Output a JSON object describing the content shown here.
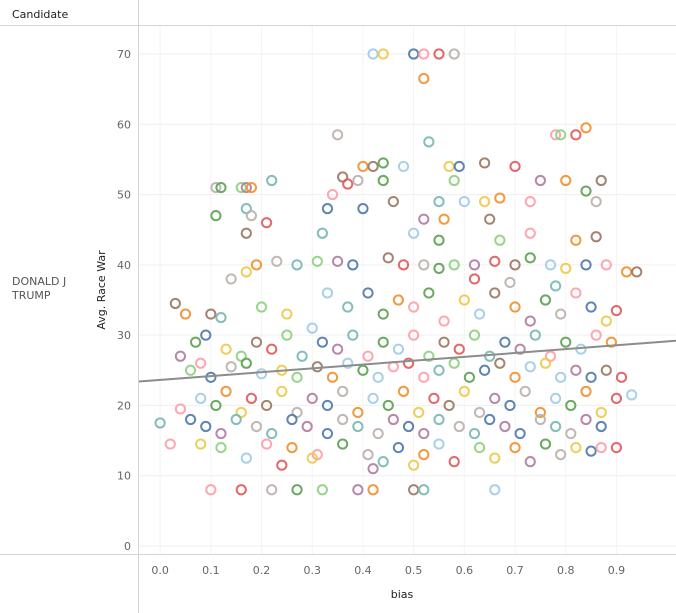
{
  "header": {
    "column_title": "Candidate"
  },
  "row": {
    "label_line1": "DONALD J",
    "label_line2": "TRUMP"
  },
  "chart_data": {
    "type": "scatter",
    "xlabel": "bias",
    "ylabel": "Avg. Race War",
    "x_ticks": [
      0.0,
      0.1,
      0.2,
      0.3,
      0.4,
      0.5,
      0.6,
      0.7,
      0.8,
      0.9
    ],
    "x_tick_labels": [
      "0.0",
      "0.1",
      "0.2",
      "0.3",
      "0.4",
      "0.5",
      "0.6",
      "0.7",
      "0.8",
      "0.9"
    ],
    "y_ticks": [
      0,
      10,
      20,
      30,
      40,
      50,
      60,
      70
    ],
    "y_tick_labels": [
      "0",
      "10",
      "20",
      "30",
      "40",
      "50",
      "60",
      "70"
    ],
    "xlim": [
      -0.02,
      0.98
    ],
    "ylim": [
      -1,
      73
    ],
    "grid": true,
    "marker": "hollow-circle",
    "trend_line": {
      "type": "linear",
      "x": [
        -0.02,
        0.98
      ],
      "y": [
        23.4,
        29.2
      ]
    },
    "palette": [
      "#4e79a7",
      "#f28e2b",
      "#e15759",
      "#76b7b2",
      "#59a14f",
      "#edc948",
      "#b07aa1",
      "#ff9da7",
      "#9c755f",
      "#bab0ac",
      "#a0cbe8",
      "#8cd17d"
    ],
    "trend_color": "#8c8c8c",
    "points": [
      [
        0.42,
        70
      ],
      [
        0.44,
        70
      ],
      [
        0.5,
        70
      ],
      [
        0.52,
        70
      ],
      [
        0.55,
        70
      ],
      [
        0.58,
        70
      ],
      [
        0.52,
        66.5
      ],
      [
        0.84,
        59.5
      ],
      [
        0.78,
        58.5
      ],
      [
        0.82,
        58.5
      ],
      [
        0.35,
        58.5
      ],
      [
        0.53,
        57.5
      ],
      [
        0.79,
        58.5
      ],
      [
        0.4,
        54
      ],
      [
        0.42,
        54
      ],
      [
        0.44,
        54.5
      ],
      [
        0.48,
        54
      ],
      [
        0.57,
        54
      ],
      [
        0.59,
        54
      ],
      [
        0.64,
        54.5
      ],
      [
        0.7,
        54
      ],
      [
        0.36,
        52.5
      ],
      [
        0.37,
        51.5
      ],
      [
        0.39,
        52
      ],
      [
        0.44,
        52
      ],
      [
        0.58,
        52
      ],
      [
        0.75,
        52
      ],
      [
        0.8,
        52
      ],
      [
        0.87,
        52
      ],
      [
        0.22,
        52
      ],
      [
        0.11,
        51
      ],
      [
        0.12,
        51
      ],
      [
        0.16,
        51
      ],
      [
        0.17,
        51
      ],
      [
        0.18,
        51
      ],
      [
        0.34,
        50
      ],
      [
        0.4,
        48
      ],
      [
        0.46,
        49
      ],
      [
        0.55,
        49
      ],
      [
        0.6,
        49
      ],
      [
        0.64,
        49
      ],
      [
        0.67,
        49.5
      ],
      [
        0.73,
        49
      ],
      [
        0.84,
        50.5
      ],
      [
        0.86,
        49
      ],
      [
        0.17,
        48
      ],
      [
        0.18,
        47
      ],
      [
        0.11,
        47
      ],
      [
        0.33,
        48
      ],
      [
        0.52,
        46.5
      ],
      [
        0.56,
        46.5
      ],
      [
        0.65,
        46.5
      ],
      [
        0.21,
        46
      ],
      [
        0.17,
        44.5
      ],
      [
        0.32,
        44.5
      ],
      [
        0.5,
        44.5
      ],
      [
        0.55,
        43.5
      ],
      [
        0.67,
        43.5
      ],
      [
        0.73,
        44.5
      ],
      [
        0.82,
        43.5
      ],
      [
        0.86,
        44
      ],
      [
        0.14,
        38
      ],
      [
        0.17,
        39
      ],
      [
        0.19,
        40
      ],
      [
        0.23,
        40.5
      ],
      [
        0.27,
        40
      ],
      [
        0.31,
        40.5
      ],
      [
        0.35,
        40.5
      ],
      [
        0.38,
        40
      ],
      [
        0.45,
        41
      ],
      [
        0.48,
        40
      ],
      [
        0.52,
        40
      ],
      [
        0.55,
        39.5
      ],
      [
        0.58,
        40
      ],
      [
        0.62,
        40
      ],
      [
        0.66,
        40.5
      ],
      [
        0.7,
        40
      ],
      [
        0.73,
        41
      ],
      [
        0.77,
        40
      ],
      [
        0.8,
        39.5
      ],
      [
        0.84,
        40
      ],
      [
        0.88,
        40
      ],
      [
        0.92,
        39
      ],
      [
        0.94,
        39
      ],
      [
        0.62,
        38
      ],
      [
        0.69,
        37.5
      ],
      [
        0.78,
        37
      ],
      [
        0.03,
        34.5
      ],
      [
        0.05,
        33
      ],
      [
        0.1,
        33
      ],
      [
        0.12,
        32.5
      ],
      [
        0.2,
        34
      ],
      [
        0.25,
        33
      ],
      [
        0.3,
        31
      ],
      [
        0.33,
        36
      ],
      [
        0.37,
        34
      ],
      [
        0.41,
        36
      ],
      [
        0.44,
        33
      ],
      [
        0.47,
        35
      ],
      [
        0.5,
        34
      ],
      [
        0.53,
        36
      ],
      [
        0.56,
        32
      ],
      [
        0.6,
        35
      ],
      [
        0.63,
        33
      ],
      [
        0.66,
        36
      ],
      [
        0.7,
        34
      ],
      [
        0.73,
        32
      ],
      [
        0.76,
        35
      ],
      [
        0.79,
        33
      ],
      [
        0.82,
        36
      ],
      [
        0.85,
        34
      ],
      [
        0.88,
        32
      ],
      [
        0.9,
        33.5
      ],
      [
        0.07,
        29
      ],
      [
        0.09,
        30
      ],
      [
        0.13,
        28
      ],
      [
        0.16,
        27
      ],
      [
        0.19,
        29
      ],
      [
        0.22,
        28
      ],
      [
        0.25,
        30
      ],
      [
        0.28,
        27
      ],
      [
        0.32,
        29
      ],
      [
        0.35,
        28
      ],
      [
        0.38,
        30
      ],
      [
        0.41,
        27
      ],
      [
        0.44,
        29
      ],
      [
        0.47,
        28
      ],
      [
        0.5,
        30
      ],
      [
        0.53,
        27
      ],
      [
        0.56,
        29
      ],
      [
        0.59,
        28
      ],
      [
        0.62,
        30
      ],
      [
        0.65,
        27
      ],
      [
        0.68,
        29
      ],
      [
        0.71,
        28
      ],
      [
        0.74,
        30
      ],
      [
        0.77,
        27
      ],
      [
        0.8,
        29
      ],
      [
        0.83,
        28
      ],
      [
        0.86,
        30
      ],
      [
        0.89,
        29
      ],
      [
        0.04,
        27
      ],
      [
        0.06,
        25
      ],
      [
        0.08,
        26
      ],
      [
        0.1,
        24
      ],
      [
        0.14,
        25.5
      ],
      [
        0.17,
        26
      ],
      [
        0.2,
        24.5
      ],
      [
        0.24,
        25
      ],
      [
        0.27,
        24
      ],
      [
        0.31,
        25.5
      ],
      [
        0.34,
        24
      ],
      [
        0.37,
        26
      ],
      [
        0.4,
        25
      ],
      [
        0.43,
        24
      ],
      [
        0.46,
        25.5
      ],
      [
        0.49,
        26
      ],
      [
        0.52,
        24
      ],
      [
        0.55,
        25
      ],
      [
        0.58,
        26
      ],
      [
        0.61,
        24
      ],
      [
        0.64,
        25
      ],
      [
        0.67,
        26
      ],
      [
        0.7,
        24
      ],
      [
        0.73,
        25.5
      ],
      [
        0.76,
        26
      ],
      [
        0.79,
        24
      ],
      [
        0.82,
        25
      ],
      [
        0.85,
        24
      ],
      [
        0.88,
        25
      ],
      [
        0.91,
        24
      ],
      [
        0.0,
        17.5
      ],
      [
        0.02,
        14.5
      ],
      [
        0.04,
        19.5
      ],
      [
        0.06,
        18
      ],
      [
        0.08,
        21
      ],
      [
        0.11,
        20
      ],
      [
        0.13,
        22
      ],
      [
        0.16,
        19
      ],
      [
        0.18,
        21
      ],
      [
        0.21,
        20
      ],
      [
        0.24,
        22
      ],
      [
        0.27,
        19
      ],
      [
        0.3,
        21
      ],
      [
        0.33,
        20
      ],
      [
        0.36,
        22
      ],
      [
        0.39,
        19
      ],
      [
        0.42,
        21
      ],
      [
        0.45,
        20
      ],
      [
        0.48,
        22
      ],
      [
        0.51,
        19
      ],
      [
        0.54,
        21
      ],
      [
        0.57,
        20
      ],
      [
        0.6,
        22
      ],
      [
        0.63,
        19
      ],
      [
        0.66,
        21
      ],
      [
        0.69,
        20
      ],
      [
        0.72,
        22
      ],
      [
        0.75,
        19
      ],
      [
        0.78,
        21
      ],
      [
        0.81,
        20
      ],
      [
        0.84,
        22
      ],
      [
        0.87,
        19
      ],
      [
        0.9,
        21
      ],
      [
        0.93,
        21.5
      ],
      [
        0.09,
        17
      ],
      [
        0.12,
        16
      ],
      [
        0.15,
        18
      ],
      [
        0.19,
        17
      ],
      [
        0.22,
        16
      ],
      [
        0.26,
        18
      ],
      [
        0.29,
        17
      ],
      [
        0.33,
        16
      ],
      [
        0.36,
        18
      ],
      [
        0.39,
        17
      ],
      [
        0.43,
        16
      ],
      [
        0.46,
        18
      ],
      [
        0.49,
        17
      ],
      [
        0.52,
        16
      ],
      [
        0.55,
        18
      ],
      [
        0.59,
        17
      ],
      [
        0.62,
        16
      ],
      [
        0.65,
        18
      ],
      [
        0.68,
        17
      ],
      [
        0.71,
        16
      ],
      [
        0.75,
        18
      ],
      [
        0.78,
        17
      ],
      [
        0.81,
        16
      ],
      [
        0.84,
        18
      ],
      [
        0.87,
        17
      ],
      [
        0.08,
        14.5
      ],
      [
        0.12,
        14
      ],
      [
        0.21,
        14.5
      ],
      [
        0.26,
        14
      ],
      [
        0.31,
        13
      ],
      [
        0.36,
        14.5
      ],
      [
        0.41,
        13
      ],
      [
        0.44,
        12
      ],
      [
        0.47,
        14
      ],
      [
        0.5,
        11.5
      ],
      [
        0.52,
        13
      ],
      [
        0.55,
        14.5
      ],
      [
        0.58,
        12
      ],
      [
        0.63,
        14
      ],
      [
        0.66,
        12.5
      ],
      [
        0.7,
        14
      ],
      [
        0.73,
        12
      ],
      [
        0.76,
        14.5
      ],
      [
        0.79,
        13
      ],
      [
        0.82,
        14
      ],
      [
        0.85,
        13.5
      ],
      [
        0.87,
        14
      ],
      [
        0.9,
        14
      ],
      [
        0.42,
        11
      ],
      [
        0.24,
        11.5
      ],
      [
        0.17,
        12.5
      ],
      [
        0.3,
        12.5
      ],
      [
        0.1,
        8
      ],
      [
        0.16,
        8
      ],
      [
        0.22,
        8
      ],
      [
        0.27,
        8
      ],
      [
        0.32,
        8
      ],
      [
        0.39,
        8
      ],
      [
        0.42,
        8
      ],
      [
        0.5,
        8
      ],
      [
        0.52,
        8
      ],
      [
        0.66,
        8
      ]
    ]
  }
}
